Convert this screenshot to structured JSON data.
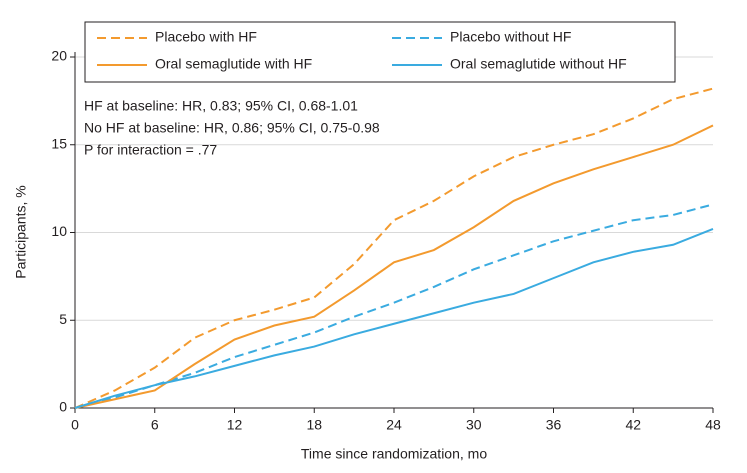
{
  "chart_data": {
    "type": "line",
    "x_label": "Time since randomization, mo",
    "y_label": "Participants, %",
    "x": [
      0,
      3,
      6,
      9,
      12,
      15,
      18,
      21,
      24,
      27,
      30,
      33,
      36,
      39,
      42,
      45,
      48
    ],
    "series": [
      {
        "name": "Placebo with HF",
        "color": "#f39a2e",
        "style": "dashed",
        "values": [
          0,
          1.0,
          2.3,
          4.0,
          5.0,
          5.6,
          6.3,
          8.2,
          10.7,
          11.8,
          13.2,
          14.3,
          15.0,
          15.6,
          16.5,
          17.6,
          18.2
        ]
      },
      {
        "name": "Placebo without HF",
        "color": "#3aabe0",
        "style": "dashed",
        "values": [
          0,
          0.6,
          1.3,
          2.0,
          2.9,
          3.6,
          4.3,
          5.2,
          6.0,
          6.9,
          7.9,
          8.7,
          9.5,
          10.1,
          10.7,
          11.0,
          11.6
        ]
      },
      {
        "name": "Oral semaglutide with HF",
        "color": "#f39a2e",
        "style": "solid",
        "values": [
          0,
          0.5,
          1.0,
          2.5,
          3.9,
          4.7,
          5.2,
          6.7,
          8.3,
          9.0,
          10.3,
          11.8,
          12.8,
          13.6,
          14.3,
          15.0,
          16.1
        ]
      },
      {
        "name": "Oral semaglutide without HF",
        "color": "#3aabe0",
        "style": "solid",
        "values": [
          0,
          0.7,
          1.3,
          1.8,
          2.4,
          3.0,
          3.5,
          4.2,
          4.8,
          5.4,
          6.0,
          6.5,
          7.4,
          8.3,
          8.9,
          9.3,
          10.2
        ]
      }
    ],
    "annotations": [
      "HF at baseline: HR, 0.83; 95% CI, 0.68-1.01",
      "No HF at baseline: HR, 0.86; 95% CI, 0.75-0.98",
      "P for interaction = .77"
    ],
    "xlim": [
      0,
      48
    ],
    "xticks": [
      0,
      6,
      12,
      18,
      24,
      30,
      36,
      42,
      48
    ],
    "ylim": [
      0,
      20
    ],
    "yticks": [
      0,
      5,
      10,
      15,
      20
    ],
    "grid": true,
    "legend": "top-left"
  }
}
